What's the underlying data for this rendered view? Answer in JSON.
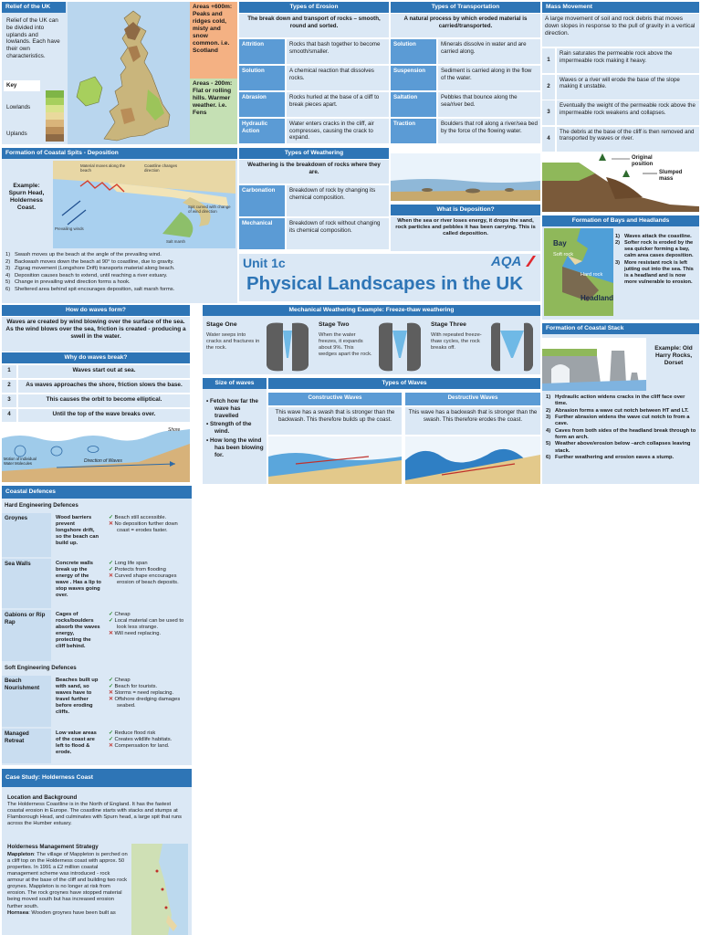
{
  "relief": {
    "title": "Relief of the UK",
    "text": "Relief of the UK can be divided into uplands and lowlands. Each have their own characteristics.",
    "key_label": "Key",
    "lowlands_label": "Lowlands",
    "uplands_label": "Uplands",
    "upland_note": "Areas +600m: Peaks and ridges cold, misty and snow common. i.e. Scotland",
    "lowland_note": "Areas - 200m: Flat or rolling hills. Warmer weather. i.e. Fens"
  },
  "erosion": {
    "title": "Types of Erosion",
    "intro": "The break down and transport of rocks – smooth, round and sorted.",
    "rows": [
      {
        "term": "Attrition",
        "def": "Rocks that bash together to become smooth/smaller."
      },
      {
        "term": "Solution",
        "def": "A chemical reaction that dissolves rocks."
      },
      {
        "term": "Abrasion",
        "def": "Rocks hurled at the base of a cliff to break pieces apart."
      },
      {
        "term": "Hydraulic Action",
        "def": "Water enters cracks in the cliff, air compresses, causing the crack to expand."
      }
    ]
  },
  "transport": {
    "title": "Types of Transportation",
    "intro": "A natural process by which eroded material is carried/transported.",
    "rows": [
      {
        "term": "Solution",
        "def": "Minerals dissolve in water and are carried along."
      },
      {
        "term": "Suspension",
        "def": "Sediment is carried along in the flow of the water."
      },
      {
        "term": "Saltation",
        "def": "Pebbles that bounce along the sea/river bed."
      },
      {
        "term": "Traction",
        "def": "Boulders that roll along a river/sea bed by the force of the flowing water."
      }
    ]
  },
  "mass": {
    "title": "Mass Movement",
    "intro": "A large movement of soil and rock debris that moves down slopes in response to the pull of gravity in a vertical direction.",
    "steps": [
      {
        "n": "1",
        "text": "Rain saturates the permeable rock above the impermeable rock making it heavy."
      },
      {
        "n": "2",
        "text": "Waves or a river will erode the base of the slope making it unstable."
      },
      {
        "n": "3",
        "text": "Eventually the weight of the permeable rock above the impermeable rock weakens and collapses."
      },
      {
        "n": "4",
        "text": "The debris at the base of the cliff is then removed and transported by waves or river."
      }
    ],
    "diagram_label_a": "Original position",
    "diagram_label_b": "Slumped mass"
  },
  "spits": {
    "title": "Formation of Coastal Spits - Deposition",
    "example": "Example: Spurn Head, Holderness Coast.",
    "steps": [
      {
        "n": "1)",
        "text": "Swash moves up the beach at the angle of the prevailing wind."
      },
      {
        "n": "2)",
        "text": "Backwash moves down the beach at 90° to coastline, due to gravity."
      },
      {
        "n": "3)",
        "text": "Zigzag movement (Longshore Drift) transports material along beach."
      },
      {
        "n": "4)",
        "text": "Deposition causes beach to extend, until reaching a river estuary."
      },
      {
        "n": "5)",
        "text": "Change in prevailing wind direction forms a hook."
      },
      {
        "n": "6)",
        "text": "Sheltered area behind spit encourages deposition, salt marsh forms."
      }
    ],
    "diagram_labels": [
      "Material moves along the beach",
      "Coastline changes direction",
      "Prevailing winds",
      "Spit curved with change of wind direction",
      "Salt marsh"
    ]
  },
  "weathering": {
    "title": "Types of Weathering",
    "intro": "Weathering is the breakdown of rocks where they are.",
    "rows": [
      {
        "term": "Carbonation",
        "def": "Breakdown of rock by changing its chemical composition."
      },
      {
        "term": "Mechanical",
        "def": "Breakdown of rock without changing its chemical composition."
      }
    ]
  },
  "deposition": {
    "title": "What is Deposition?",
    "text": "When the sea or river loses energy, it drops the sand, rock particles and pebbles it has been carrying. This is called deposition."
  },
  "unit": {
    "code": "Unit 1c",
    "title": "Physical Landscapes in the UK",
    "logo": "AQA"
  },
  "bays": {
    "title": "Formation of Bays and Headlands",
    "labels": {
      "bay": "Bay",
      "soft": "Soft rock",
      "hard": "Hard rock",
      "headland": "Headland"
    },
    "steps": [
      {
        "n": "1)",
        "text": "Waves attack the coastline."
      },
      {
        "n": "2)",
        "text": "Softer rock is eroded by the sea quicker forming a bay, calm area cases deposition."
      },
      {
        "n": "3)",
        "text": "More resistant rock is left jutting out into the sea. This is a headland and is now more vulnerable to erosion."
      }
    ]
  },
  "wavesform": {
    "title": "How do waves form?",
    "text": "Waves are created by wind blowing over the surface of the sea. As the wind blows over the sea, friction is created - producing a swell in the water."
  },
  "freeze": {
    "title": "Mechanical Weathering Example: Freeze-thaw weathering",
    "stages": [
      {
        "name": "Stage One",
        "text": "Water seeps into cracks and fractures in the rock."
      },
      {
        "name": "Stage Two",
        "text": "When the water freezes, it expands about 9%. This wedges apart the rock."
      },
      {
        "name": "Stage Three",
        "text": "With repeated freeze-thaw cycles, the rock breaks off."
      }
    ]
  },
  "stack": {
    "title": "Formation of Coastal Stack",
    "example": "Example: Old Harry Rocks, Dorset",
    "steps": [
      {
        "n": "1)",
        "text": "Hydraulic action widens cracks in the cliff face over time."
      },
      {
        "n": "2)",
        "text": "Abrasion forms a wave cut notch between HT and LT."
      },
      {
        "n": "3)",
        "text": "Further abrasion widens the wave cut notch to from a cave."
      },
      {
        "n": "4)",
        "text": "Caves from both sides of the headland break through to form an arch."
      },
      {
        "n": "5)",
        "text": "Weather above/erosion below –arch collapses leaving stack."
      },
      {
        "n": "6)",
        "text": "Further weathering and erosion eaves a stump."
      }
    ]
  },
  "wavesbreak": {
    "title": "Why do waves break?",
    "steps": [
      {
        "n": "1",
        "text": "Waves start out at sea."
      },
      {
        "n": "2",
        "text": "As waves approaches the shore, friction slows the base."
      },
      {
        "n": "3",
        "text": "This causes the orbit to become elliptical."
      },
      {
        "n": "4",
        "text": "Until the top of the wave breaks over."
      }
    ],
    "diagram_labels": {
      "shore": "Shore",
      "direction": "Direction of Waves",
      "motion": "Motion of individual Water Molecules"
    }
  },
  "size": {
    "title": "Size of waves",
    "bullets": [
      "Fetch how far the wave has travelled",
      "Strength of the wind.",
      "How long the wind has been blowing for."
    ]
  },
  "wavetypes": {
    "title": "Types of Waves",
    "constructive": {
      "name": "Constructive Waves",
      "text": "This wave has a swash that is stronger than the backwash. This therefore builds up the coast."
    },
    "destructive": {
      "name": "Destructive Waves",
      "text": "This wave has a backwash that is stronger than the swash. This therefore erodes the coast."
    }
  },
  "defences": {
    "title": "Coastal Defences",
    "hard_title": "Hard Engineering Defences",
    "soft_title": "Soft Engineering Defences",
    "hard": [
      {
        "name": "Groynes",
        "desc": "Wood barriers prevent longshore drift, so the beach can build up.",
        "pros": [
          "Beach still accessible."
        ],
        "cons": [
          "No deposition further down coast = erodes faster."
        ]
      },
      {
        "name": "Sea Walls",
        "desc": "Concrete walls break up the energy of the wave . Has a lip to stop waves going over.",
        "pros": [
          "Long life span",
          "Protects from flooding"
        ],
        "cons": [
          "Curved shape encourages erosion of beach deposits."
        ]
      },
      {
        "name": "Gabions or Rip Rap",
        "desc": "Cages of rocks/boulders absorb the waves energy, protecting the cliff behind.",
        "pros": [
          "Cheap",
          "Local material can be used to look less strange."
        ],
        "cons": [
          "Will need replacing."
        ]
      }
    ],
    "soft": [
      {
        "name": "Beach Nourishment",
        "desc": "Beaches built up with sand, so waves have to travel further before eroding cliffs.",
        "pros": [
          "Cheap",
          "Beach for tourists."
        ],
        "cons": [
          "Storms = need replacing.",
          "Offshore dredging damages seabed."
        ]
      },
      {
        "name": "Managed Retreat",
        "desc": "Low value areas of the coast are left to flood & erode.",
        "pros": [
          "Reduce flood risk",
          "Creates wildlife habitats."
        ],
        "cons": [
          "Compensation for land."
        ]
      }
    ]
  },
  "holderness": {
    "title": "Case Study: Holderness Coast",
    "loc_title": "Location and Background",
    "loc_text": "The Holderness Coastline is in the North of England. It has the fastest coastal erosion in Europe. The coastline starts with stacks and stumps at Flamborough Head, and culminates with Spurn head, a large spit that runs across the Humber estuary.",
    "strat_title": "Holderness Management Strategy",
    "mappleton_label": "Mappleton",
    "mappleton_text": ": The village of Mappleton is perched on a cliff top on the Holderness coast with approx. 50 properties. In 1991 a £2 million coastal management scheme was introduced - rock armour at the base of the cliff and building two rock groynes. Mappleton is no longer at risk from erosion. The rock groynes have stopped material being moved south but has increased erosion further south.",
    "hornsea_label": "Hornsea",
    "hornsea_text": ": Wooden groynes have been built as"
  },
  "colors": {
    "header": "#2e75b6",
    "light": "#dbe8f5",
    "accent": "#5b9bd5",
    "peach": "#f4b183"
  }
}
